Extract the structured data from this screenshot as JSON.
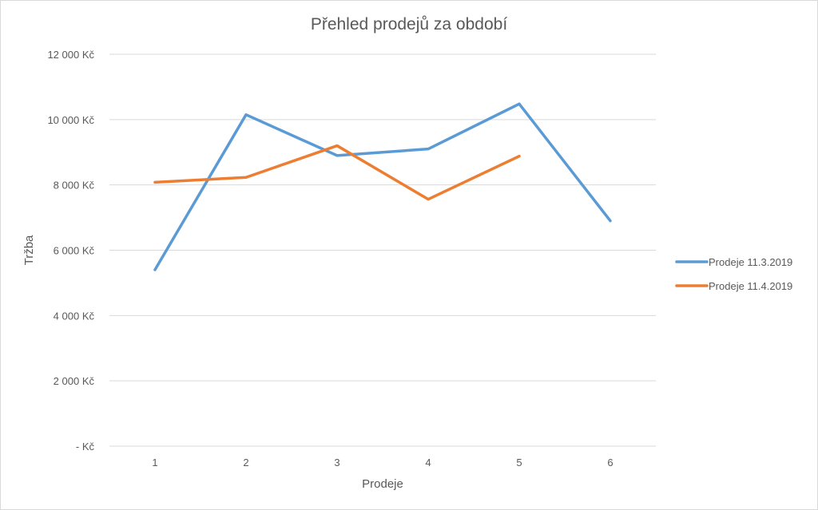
{
  "chart_data": {
    "type": "line",
    "title": "Přehled prodejů za období",
    "xlabel": "Prodeje",
    "ylabel": "Tržba",
    "categories": [
      "1",
      "2",
      "3",
      "4",
      "5",
      "6"
    ],
    "ylim": [
      0,
      12000
    ],
    "y_ticks": [
      {
        "value": 0,
        "label": "-   Kč"
      },
      {
        "value": 2000,
        "label": "2 000 Kč"
      },
      {
        "value": 4000,
        "label": "4 000 Kč"
      },
      {
        "value": 6000,
        "label": "6 000 Kč"
      },
      {
        "value": 8000,
        "label": "8 000 Kč"
      },
      {
        "value": 10000,
        "label": "10 000 Kč"
      },
      {
        "value": 12000,
        "label": "12 000 Kč"
      }
    ],
    "grid": true,
    "legend_position": "right",
    "series": [
      {
        "name": "Prodeje 11.3.2019",
        "color": "#5b9bd5",
        "values": [
          5400,
          10150,
          8900,
          9100,
          10480,
          6900
        ]
      },
      {
        "name": "Prodeje 11.4.2019",
        "color": "#ed7d31",
        "values": [
          8080,
          8230,
          9200,
          7560,
          8880,
          null
        ]
      }
    ]
  }
}
